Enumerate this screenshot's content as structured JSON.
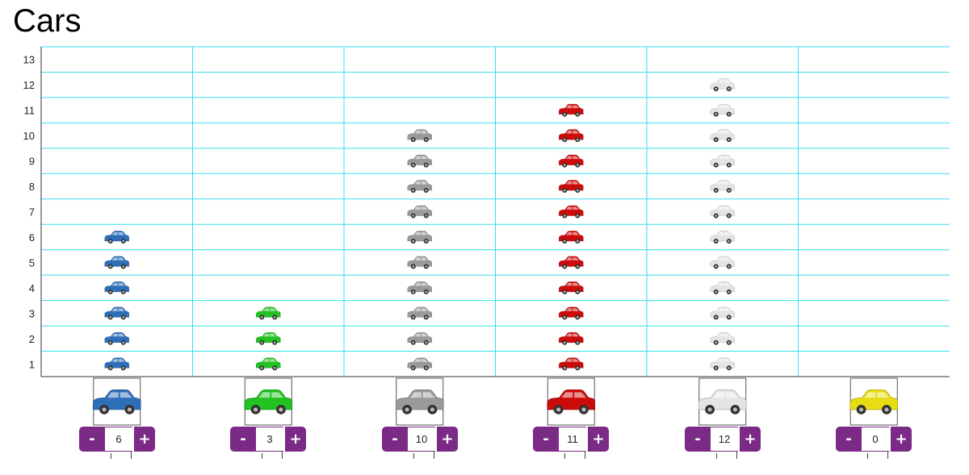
{
  "title": "Cars",
  "colors": {
    "grid": "#33e1ee",
    "axis": "#333333",
    "button": "#7b2a86"
  },
  "chart_data": {
    "type": "bar",
    "style": "pictograph",
    "icon": "car-icon",
    "ylim": [
      0,
      13
    ],
    "yticks": [
      1,
      2,
      3,
      4,
      5,
      6,
      7,
      8,
      9,
      10,
      11,
      12,
      13
    ],
    "categories": [
      "blue",
      "green",
      "gray",
      "red",
      "white",
      "yellow"
    ],
    "category_colors": [
      "#2f6fba",
      "#21c221",
      "#9a9a9a",
      "#cc0b0b",
      "#e4e4e4",
      "#e8dc12"
    ],
    "values": [
      6,
      3,
      10,
      11,
      12,
      0
    ]
  },
  "controls": {
    "minus_label": "-",
    "plus_label": "+",
    "values": [
      "6",
      "3",
      "10",
      "11",
      "12",
      "0"
    ]
  }
}
